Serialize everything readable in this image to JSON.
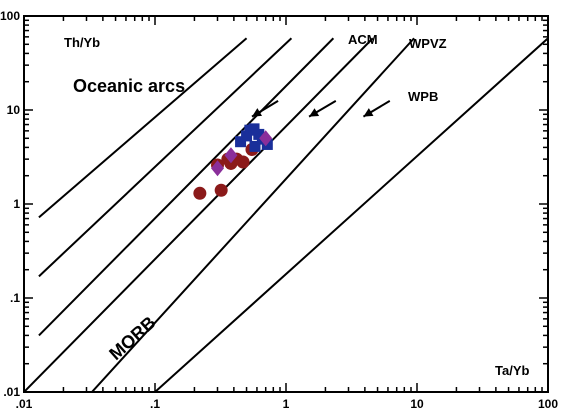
{
  "chart_data": {
    "type": "scatter",
    "title": "",
    "xlabel": "Ta/Yb",
    "ylabel": "Th/Yb",
    "x_scale": "log",
    "y_scale": "log",
    "xlim": [
      0.01,
      100
    ],
    "ylim": [
      0.01,
      100
    ],
    "x_ticks": [
      ".01",
      ".1",
      "1",
      "10",
      "100"
    ],
    "y_ticks": [
      ".01",
      ".1",
      "1",
      "10",
      "100"
    ],
    "grid": false,
    "legend": "none",
    "annotations": {
      "oceanic_arcs": "Oceanic arcs",
      "acm": "ACM",
      "wpvz": "WPVZ",
      "wpb": "WPB",
      "morb": "MORB"
    },
    "reference_lines": [
      {
        "from": [
          0.013,
          0.72
        ],
        "to": [
          0.5,
          58
        ]
      },
      {
        "from": [
          0.013,
          0.17
        ],
        "to": [
          1.1,
          58
        ]
      },
      {
        "from": [
          0.013,
          0.04
        ],
        "to": [
          2.3,
          58
        ]
      },
      {
        "from": [
          0.01,
          0.01
        ],
        "to": [
          4.6,
          58
        ]
      },
      {
        "from": [
          0.033,
          0.01
        ],
        "to": [
          9.5,
          58
        ]
      },
      {
        "from": [
          0.1,
          0.01
        ],
        "to": [
          100,
          58
        ]
      }
    ],
    "trend_arrows": [
      {
        "from": [
          0.87,
          12.5
        ],
        "to": [
          0.55,
          8.5
        ]
      },
      {
        "from": [
          2.4,
          12.5
        ],
        "to": [
          1.5,
          8.5
        ]
      },
      {
        "from": [
          6.2,
          12.5
        ],
        "to": [
          3.9,
          8.5
        ]
      }
    ],
    "series": [
      {
        "marker": "circle",
        "color": "#8b1a1a",
        "points": [
          [
            0.22,
            1.3
          ],
          [
            0.3,
            2.6
          ],
          [
            0.32,
            1.4
          ],
          [
            0.36,
            3.0
          ],
          [
            0.38,
            2.7
          ],
          [
            0.42,
            3.0
          ],
          [
            0.47,
            2.8
          ],
          [
            0.55,
            3.8
          ]
        ]
      },
      {
        "marker": "square",
        "color": "#1a2f9a",
        "points": [
          [
            0.45,
            4.6
          ],
          [
            0.5,
            5.3
          ],
          [
            0.53,
            6.1
          ],
          [
            0.57,
            6.3
          ],
          [
            0.62,
            5.5
          ],
          [
            0.66,
            4.9
          ],
          [
            0.72,
            4.3
          ],
          [
            0.58,
            4.1
          ]
        ]
      },
      {
        "marker": "diamond",
        "color": "#8a2f9a",
        "points": [
          [
            0.3,
            2.4
          ],
          [
            0.38,
            3.3
          ],
          [
            0.7,
            5.0
          ]
        ]
      }
    ]
  }
}
